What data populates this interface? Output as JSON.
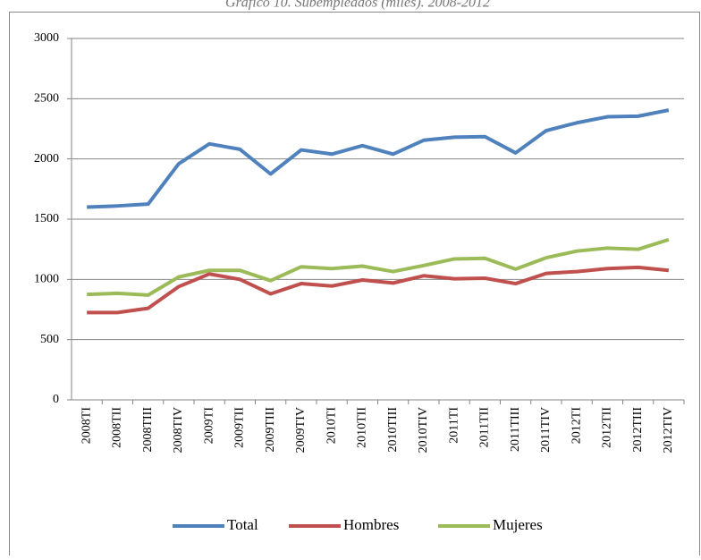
{
  "chart_data": {
    "type": "line",
    "title": "Gráfico 10. Subempleados (miles). 2008-2012",
    "categories": [
      "2008TI",
      "2008TII",
      "2008TIII",
      "2008TIV",
      "2009TI",
      "2009TII",
      "2009TIII",
      "2009TIV",
      "2010TI",
      "2010TII",
      "2010TIII",
      "2010TIV",
      "2011TI",
      "2011TII",
      "2011TIII",
      "2011TIV",
      "2012TI",
      "2012TII",
      "2012TIII",
      "2012TIV"
    ],
    "series": [
      {
        "name": "Total",
        "color": "#4f81bd",
        "values": [
          1600,
          1610,
          1625,
          1960,
          2125,
          2080,
          1875,
          2075,
          2040,
          2110,
          2040,
          2155,
          2180,
          2185,
          2050,
          2235,
          2300,
          2350,
          2355,
          2405
        ]
      },
      {
        "name": "Hombres",
        "color": "#c0504d",
        "values": [
          725,
          725,
          760,
          940,
          1045,
          1000,
          880,
          965,
          945,
          995,
          970,
          1030,
          1005,
          1010,
          965,
          1050,
          1065,
          1090,
          1100,
          1075
        ]
      },
      {
        "name": "Mujeres",
        "color": "#9bbb59",
        "values": [
          875,
          885,
          870,
          1020,
          1075,
          1075,
          990,
          1105,
          1090,
          1110,
          1065,
          1115,
          1170,
          1175,
          1085,
          1180,
          1235,
          1260,
          1250,
          1330
        ]
      }
    ],
    "ylim": [
      0,
      3000
    ],
    "yticks": [
      0,
      500,
      1000,
      1500,
      2000,
      2500,
      3000
    ],
    "grid": true,
    "legend": "bottom"
  }
}
